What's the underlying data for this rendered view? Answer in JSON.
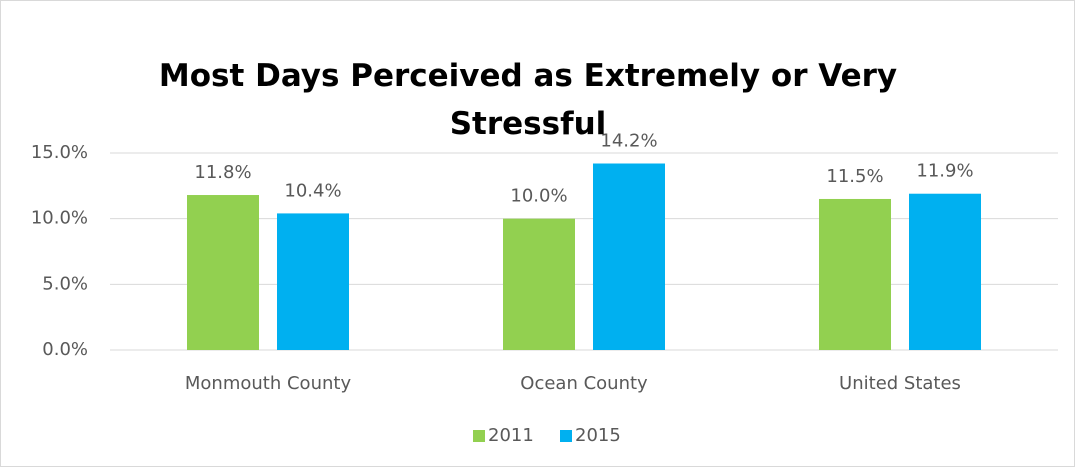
{
  "chart_data": {
    "type": "bar",
    "title": "Most Days Perceived as Extremely or Very Stressful",
    "categories": [
      "Monmouth County",
      "Ocean County",
      "United States"
    ],
    "series": [
      {
        "name": "2011",
        "color": "#92d050",
        "values": [
          11.8,
          10.0,
          11.5
        ],
        "value_labels": [
          "11.8%",
          "10.0%",
          "11.5%"
        ]
      },
      {
        "name": "2015",
        "color": "#00b0f0",
        "values": [
          10.4,
          14.2,
          11.9
        ],
        "value_labels": [
          "10.4%",
          "14.2%",
          "11.9%"
        ]
      }
    ],
    "ylim": [
      0,
      15
    ],
    "yticks": [
      {
        "value": 0,
        "label": "0.0%"
      },
      {
        "value": 5,
        "label": "5.0%"
      },
      {
        "value": 10,
        "label": "10.0%"
      },
      {
        "value": 15,
        "label": "15.0%"
      }
    ],
    "grid": true,
    "legend": "bottom"
  }
}
